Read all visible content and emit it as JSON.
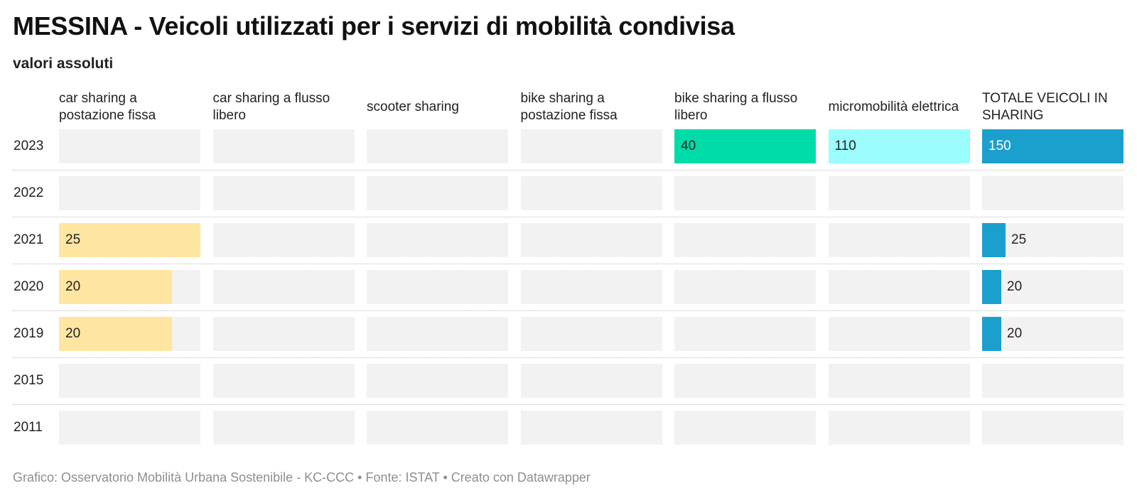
{
  "title": "MESSINA - Veicoli utilizzati per i servizi di mobilità condivisa",
  "subtitle": "valori assoluti",
  "footer": "Grafico: Osservatorio Mobilità Urbana Sostenibile - KC-CCC • Fonte: ISTAT • Creato con Datawrapper",
  "chart_data": {
    "type": "bar",
    "categories": [
      "2023",
      "2022",
      "2021",
      "2020",
      "2019",
      "2015",
      "2011"
    ],
    "series": [
      {
        "name": "car sharing a postazione fissa",
        "values": [
          null,
          null,
          25,
          20,
          20,
          null,
          null
        ],
        "color": "#fee6a0",
        "max": 25
      },
      {
        "name": "car sharing a flusso libero",
        "values": [
          null,
          null,
          null,
          null,
          null,
          null,
          null
        ],
        "color": "#cccccc",
        "max": 1
      },
      {
        "name": "scooter sharing",
        "values": [
          null,
          null,
          null,
          null,
          null,
          null,
          null
        ],
        "color": "#cccccc",
        "max": 1
      },
      {
        "name": "bike sharing a postazione fissa",
        "values": [
          null,
          null,
          null,
          null,
          null,
          null,
          null
        ],
        "color": "#cccccc",
        "max": 1
      },
      {
        "name": "bike sharing a flusso libero",
        "values": [
          40,
          null,
          null,
          null,
          null,
          null,
          null
        ],
        "color": "#00dca9",
        "max": 40
      },
      {
        "name": "micromobilità elettrica",
        "values": [
          110,
          null,
          null,
          null,
          null,
          null,
          null
        ],
        "color": "#9bfdfd",
        "max": 110
      },
      {
        "name": "TOTALE VEICOLI IN SHARING",
        "values": [
          150,
          null,
          25,
          20,
          20,
          null,
          null
        ],
        "color": "#1b9fcd",
        "max": 150
      }
    ]
  }
}
